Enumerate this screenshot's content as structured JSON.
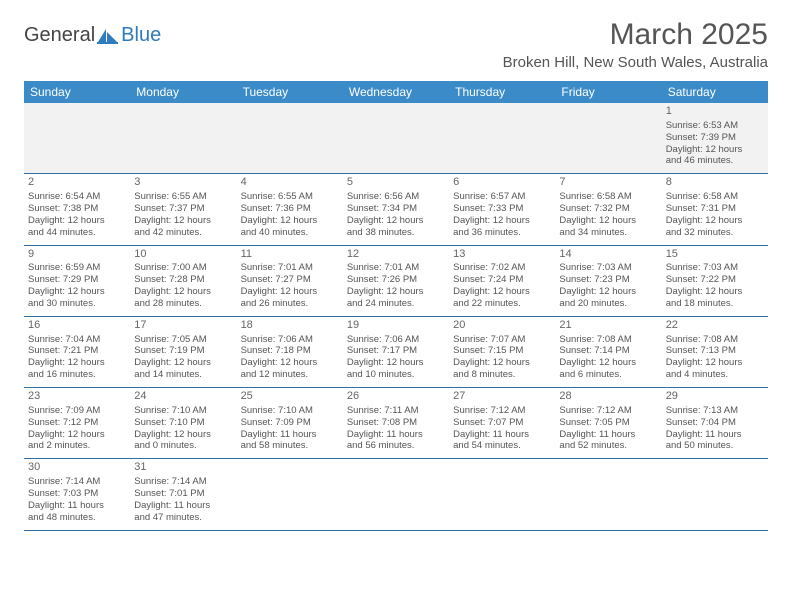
{
  "logo": {
    "text_dark": "General",
    "text_blue": "Blue",
    "accent_color": "#2f7bbf"
  },
  "title": {
    "month": "March 2025",
    "location": "Broken Hill, New South Wales, Australia"
  },
  "header_color": "#3b8bc9",
  "row_border_color": "#2f6fa8",
  "weekdays": [
    "Sunday",
    "Monday",
    "Tuesday",
    "Wednesday",
    "Thursday",
    "Friday",
    "Saturday"
  ],
  "weeks": [
    [
      null,
      null,
      null,
      null,
      null,
      null,
      {
        "d": "1",
        "sr": "Sunrise: 6:53 AM",
        "ss": "Sunset: 7:39 PM",
        "dl1": "Daylight: 12 hours",
        "dl2": "and 46 minutes."
      }
    ],
    [
      {
        "d": "2",
        "sr": "Sunrise: 6:54 AM",
        "ss": "Sunset: 7:38 PM",
        "dl1": "Daylight: 12 hours",
        "dl2": "and 44 minutes."
      },
      {
        "d": "3",
        "sr": "Sunrise: 6:55 AM",
        "ss": "Sunset: 7:37 PM",
        "dl1": "Daylight: 12 hours",
        "dl2": "and 42 minutes."
      },
      {
        "d": "4",
        "sr": "Sunrise: 6:55 AM",
        "ss": "Sunset: 7:36 PM",
        "dl1": "Daylight: 12 hours",
        "dl2": "and 40 minutes."
      },
      {
        "d": "5",
        "sr": "Sunrise: 6:56 AM",
        "ss": "Sunset: 7:34 PM",
        "dl1": "Daylight: 12 hours",
        "dl2": "and 38 minutes."
      },
      {
        "d": "6",
        "sr": "Sunrise: 6:57 AM",
        "ss": "Sunset: 7:33 PM",
        "dl1": "Daylight: 12 hours",
        "dl2": "and 36 minutes."
      },
      {
        "d": "7",
        "sr": "Sunrise: 6:58 AM",
        "ss": "Sunset: 7:32 PM",
        "dl1": "Daylight: 12 hours",
        "dl2": "and 34 minutes."
      },
      {
        "d": "8",
        "sr": "Sunrise: 6:58 AM",
        "ss": "Sunset: 7:31 PM",
        "dl1": "Daylight: 12 hours",
        "dl2": "and 32 minutes."
      }
    ],
    [
      {
        "d": "9",
        "sr": "Sunrise: 6:59 AM",
        "ss": "Sunset: 7:29 PM",
        "dl1": "Daylight: 12 hours",
        "dl2": "and 30 minutes."
      },
      {
        "d": "10",
        "sr": "Sunrise: 7:00 AM",
        "ss": "Sunset: 7:28 PM",
        "dl1": "Daylight: 12 hours",
        "dl2": "and 28 minutes."
      },
      {
        "d": "11",
        "sr": "Sunrise: 7:01 AM",
        "ss": "Sunset: 7:27 PM",
        "dl1": "Daylight: 12 hours",
        "dl2": "and 26 minutes."
      },
      {
        "d": "12",
        "sr": "Sunrise: 7:01 AM",
        "ss": "Sunset: 7:26 PM",
        "dl1": "Daylight: 12 hours",
        "dl2": "and 24 minutes."
      },
      {
        "d": "13",
        "sr": "Sunrise: 7:02 AM",
        "ss": "Sunset: 7:24 PM",
        "dl1": "Daylight: 12 hours",
        "dl2": "and 22 minutes."
      },
      {
        "d": "14",
        "sr": "Sunrise: 7:03 AM",
        "ss": "Sunset: 7:23 PM",
        "dl1": "Daylight: 12 hours",
        "dl2": "and 20 minutes."
      },
      {
        "d": "15",
        "sr": "Sunrise: 7:03 AM",
        "ss": "Sunset: 7:22 PM",
        "dl1": "Daylight: 12 hours",
        "dl2": "and 18 minutes."
      }
    ],
    [
      {
        "d": "16",
        "sr": "Sunrise: 7:04 AM",
        "ss": "Sunset: 7:21 PM",
        "dl1": "Daylight: 12 hours",
        "dl2": "and 16 minutes."
      },
      {
        "d": "17",
        "sr": "Sunrise: 7:05 AM",
        "ss": "Sunset: 7:19 PM",
        "dl1": "Daylight: 12 hours",
        "dl2": "and 14 minutes."
      },
      {
        "d": "18",
        "sr": "Sunrise: 7:06 AM",
        "ss": "Sunset: 7:18 PM",
        "dl1": "Daylight: 12 hours",
        "dl2": "and 12 minutes."
      },
      {
        "d": "19",
        "sr": "Sunrise: 7:06 AM",
        "ss": "Sunset: 7:17 PM",
        "dl1": "Daylight: 12 hours",
        "dl2": "and 10 minutes."
      },
      {
        "d": "20",
        "sr": "Sunrise: 7:07 AM",
        "ss": "Sunset: 7:15 PM",
        "dl1": "Daylight: 12 hours",
        "dl2": "and 8 minutes."
      },
      {
        "d": "21",
        "sr": "Sunrise: 7:08 AM",
        "ss": "Sunset: 7:14 PM",
        "dl1": "Daylight: 12 hours",
        "dl2": "and 6 minutes."
      },
      {
        "d": "22",
        "sr": "Sunrise: 7:08 AM",
        "ss": "Sunset: 7:13 PM",
        "dl1": "Daylight: 12 hours",
        "dl2": "and 4 minutes."
      }
    ],
    [
      {
        "d": "23",
        "sr": "Sunrise: 7:09 AM",
        "ss": "Sunset: 7:12 PM",
        "dl1": "Daylight: 12 hours",
        "dl2": "and 2 minutes."
      },
      {
        "d": "24",
        "sr": "Sunrise: 7:10 AM",
        "ss": "Sunset: 7:10 PM",
        "dl1": "Daylight: 12 hours",
        "dl2": "and 0 minutes."
      },
      {
        "d": "25",
        "sr": "Sunrise: 7:10 AM",
        "ss": "Sunset: 7:09 PM",
        "dl1": "Daylight: 11 hours",
        "dl2": "and 58 minutes."
      },
      {
        "d": "26",
        "sr": "Sunrise: 7:11 AM",
        "ss": "Sunset: 7:08 PM",
        "dl1": "Daylight: 11 hours",
        "dl2": "and 56 minutes."
      },
      {
        "d": "27",
        "sr": "Sunrise: 7:12 AM",
        "ss": "Sunset: 7:07 PM",
        "dl1": "Daylight: 11 hours",
        "dl2": "and 54 minutes."
      },
      {
        "d": "28",
        "sr": "Sunrise: 7:12 AM",
        "ss": "Sunset: 7:05 PM",
        "dl1": "Daylight: 11 hours",
        "dl2": "and 52 minutes."
      },
      {
        "d": "29",
        "sr": "Sunrise: 7:13 AM",
        "ss": "Sunset: 7:04 PM",
        "dl1": "Daylight: 11 hours",
        "dl2": "and 50 minutes."
      }
    ],
    [
      {
        "d": "30",
        "sr": "Sunrise: 7:14 AM",
        "ss": "Sunset: 7:03 PM",
        "dl1": "Daylight: 11 hours",
        "dl2": "and 48 minutes."
      },
      {
        "d": "31",
        "sr": "Sunrise: 7:14 AM",
        "ss": "Sunset: 7:01 PM",
        "dl1": "Daylight: 11 hours",
        "dl2": "and 47 minutes."
      },
      null,
      null,
      null,
      null,
      null
    ]
  ]
}
